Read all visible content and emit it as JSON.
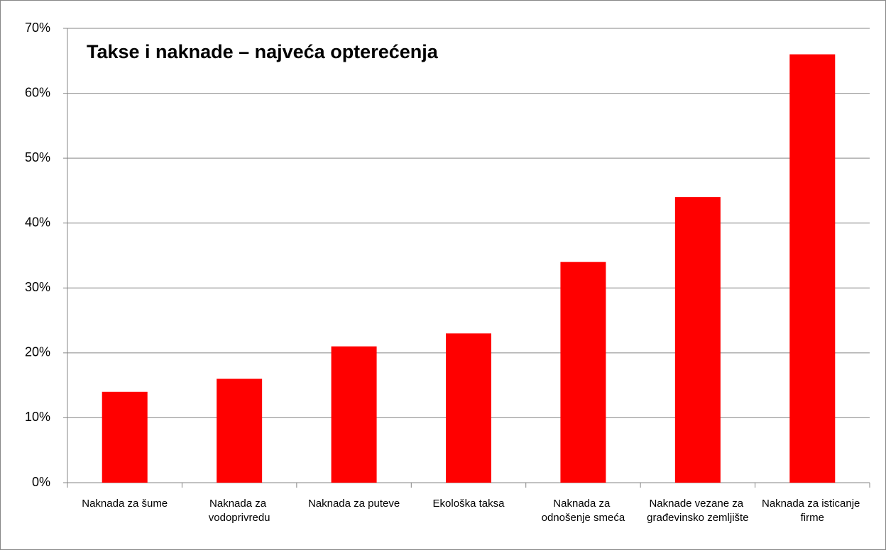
{
  "chart_data": {
    "type": "bar",
    "title": "Takse i naknade – najveća opterećenja",
    "categories": [
      "Naknada za šume",
      "Naknada za vodoprivredu",
      "Naknada za puteve",
      "Ekološka taksa",
      "Naknada za odnošenje smeća",
      "Naknade vezane za građevinsko zemljište",
      "Naknada za isticanje firme"
    ],
    "values": [
      14,
      16,
      21,
      23,
      34,
      44,
      66
    ],
    "color": "#ff0000",
    "ylim": [
      0,
      70
    ],
    "yticks": [
      {
        "value": 0,
        "label": "0%"
      },
      {
        "value": 10,
        "label": "10%"
      },
      {
        "value": 20,
        "label": "20%"
      },
      {
        "value": 30,
        "label": "30%"
      },
      {
        "value": 40,
        "label": "40%"
      },
      {
        "value": 50,
        "label": "50%"
      },
      {
        "value": 60,
        "label": "60%"
      },
      {
        "value": 70,
        "label": "70%"
      }
    ],
    "grid": true
  }
}
